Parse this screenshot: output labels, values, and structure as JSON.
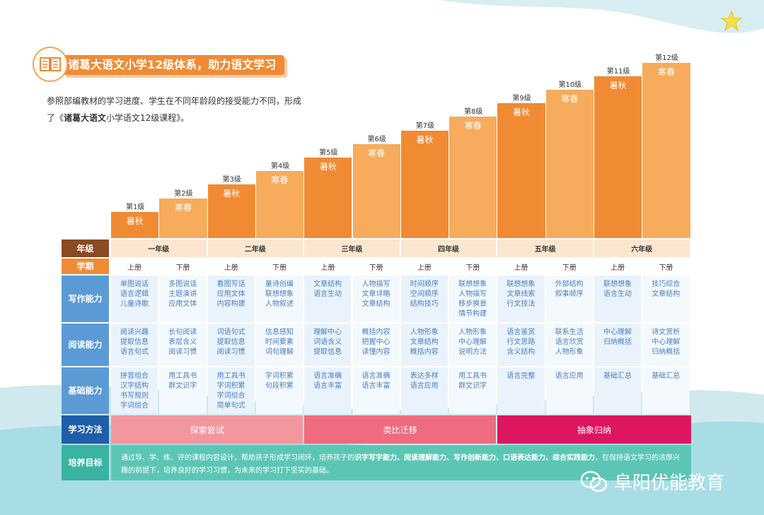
{
  "title": "诸葛大语文小学12级体系，助力语文学习",
  "intro": {
    "line1": "参照部编教材的学习进度、学生在不同年龄段的接受能力不同，形成",
    "line2_prefix": "了《",
    "line2_bold": "诸葛大语文",
    "line2_suffix": "小学语文12级课程》。"
  },
  "levels": [
    {
      "label": "第1级",
      "term": "暑秋",
      "tone": "dark",
      "value": 1
    },
    {
      "label": "第2级",
      "term": "寒春",
      "tone": "light",
      "value": 2
    },
    {
      "label": "第3级",
      "term": "暑秋",
      "tone": "dark",
      "value": 3
    },
    {
      "label": "第4级",
      "term": "寒春",
      "tone": "light",
      "value": 4
    },
    {
      "label": "第5级",
      "term": "暑秋",
      "tone": "dark",
      "value": 5
    },
    {
      "label": "第6级",
      "term": "寒春",
      "tone": "light",
      "value": 6
    },
    {
      "label": "第7级",
      "term": "暑秋",
      "tone": "dark",
      "value": 7
    },
    {
      "label": "第8级",
      "term": "寒春",
      "tone": "light",
      "value": 8
    },
    {
      "label": "第9级",
      "term": "暑秋",
      "tone": "dark",
      "value": 9
    },
    {
      "label": "第10级",
      "term": "寒春",
      "tone": "light",
      "value": 10
    },
    {
      "label": "第11级",
      "term": "暑秋",
      "tone": "dark",
      "value": 11
    },
    {
      "label": "第12级",
      "term": "寒春",
      "tone": "light",
      "value": 12
    }
  ],
  "row_heads": {
    "grade": "年级",
    "term": "学期",
    "writing": "写作\n能力",
    "reading": "阅读\n能力",
    "basic": "基础\n能力",
    "method": "学习\n方法",
    "goal": "培养\n目标"
  },
  "grades": [
    "一年级",
    "二年级",
    "三年级",
    "四年级",
    "五年级",
    "六年级"
  ],
  "terms": [
    "上册",
    "下册",
    "上册",
    "下册",
    "上册",
    "下册",
    "上册",
    "下册",
    "上册",
    "下册",
    "上册",
    "下册"
  ],
  "writing": [
    [
      "单图说话",
      "语言逻辑",
      "儿童诗歌"
    ],
    [
      "多图说话",
      "主题演讲",
      "应用文体"
    ],
    [
      "看图写话",
      "应用文体",
      "内容构建"
    ],
    [
      "童诗创编",
      "联想想象",
      "人物叙述"
    ],
    [
      "文章结构",
      "语言生动"
    ],
    [
      "人物描写",
      "文章详略",
      "文章结构"
    ],
    [
      "时间顺序",
      "空间顺序",
      "结构技巧"
    ],
    [
      "联想想象",
      "人物描写",
      "移步换景",
      "情节构建"
    ],
    [
      "联想想象",
      "文章线索",
      "行文技法"
    ],
    [
      "外部结构",
      "叙事顺序"
    ],
    [
      "联想想象",
      "语言生动"
    ],
    [
      "技巧综合",
      "文章结构"
    ]
  ],
  "reading": [
    [
      "阅读兴趣",
      "提取信息",
      "语言句式"
    ],
    [
      "长句阅读",
      "表层含义",
      "阅读习惯"
    ],
    [
      "词语句式",
      "提取信息",
      "阅读习惯"
    ],
    [
      "信息感知",
      "时间要素",
      "词句理解"
    ],
    [
      "理解中心",
      "词语含义",
      "提取信息"
    ],
    [
      "概括内容",
      "把握中心",
      "读懂内容"
    ],
    [
      "人物形象",
      "文章结构",
      "概括内容"
    ],
    [
      "人物形象",
      "中心理解",
      "说明方法"
    ],
    [
      "语言鉴赏",
      "行文思路",
      "含义结构"
    ],
    [
      "联系生活",
      "语言欣赏",
      "人物形象"
    ],
    [
      "中心理解",
      "归纳概括"
    ],
    [
      "诗文赏析",
      "中心理解",
      "归纳概括"
    ]
  ],
  "basic": [
    [
      "拼音组合",
      "汉字结构",
      "书写规则",
      "字词组合"
    ],
    [
      "用工具书",
      "群文识字"
    ],
    [
      "用工具书",
      "字词积累",
      "字词组合",
      "简单句式"
    ],
    [
      "字词积累",
      "句段积累"
    ],
    [
      "语言准确",
      "语言丰富"
    ],
    [
      "语言准确",
      "语言丰富"
    ],
    [
      "表达多样",
      "语言应用"
    ],
    [
      "用工具书",
      "群文识字"
    ],
    [
      "语言完整"
    ],
    [
      "语言应用"
    ],
    [
      "基础汇总"
    ],
    [
      "基础汇总"
    ]
  ],
  "methods": [
    {
      "label": "探索尝试",
      "color": "#f3979e"
    },
    {
      "label": "类比迁移",
      "color": "#ee6b80"
    },
    {
      "label": "抽象归纳",
      "color": "#de1660"
    }
  ],
  "goal": {
    "part1": "通过导、学、练、评的课程内容设计，帮助孩子形成学习闭环，培养孩子的",
    "bold": "识字写字能力、阅读理解能力、写作创新能力、口语表达能力、综合实践能力",
    "part2": "，在保持语文学习的浓厚兴趣的前提下，培养良好的学习习惯，为未来的学习打下坚实的基础。"
  },
  "watermark": "阜阳优能教育",
  "colors": {
    "bar_dark": "#f08b34",
    "bar_light": "#f6ac5c",
    "head_brown": "#8a4a22",
    "head_orange": "#f08b34",
    "head_blue": "#5b9bd5",
    "head_navy": "#1f5ea8",
    "head_teal": "#3ab3a2"
  }
}
